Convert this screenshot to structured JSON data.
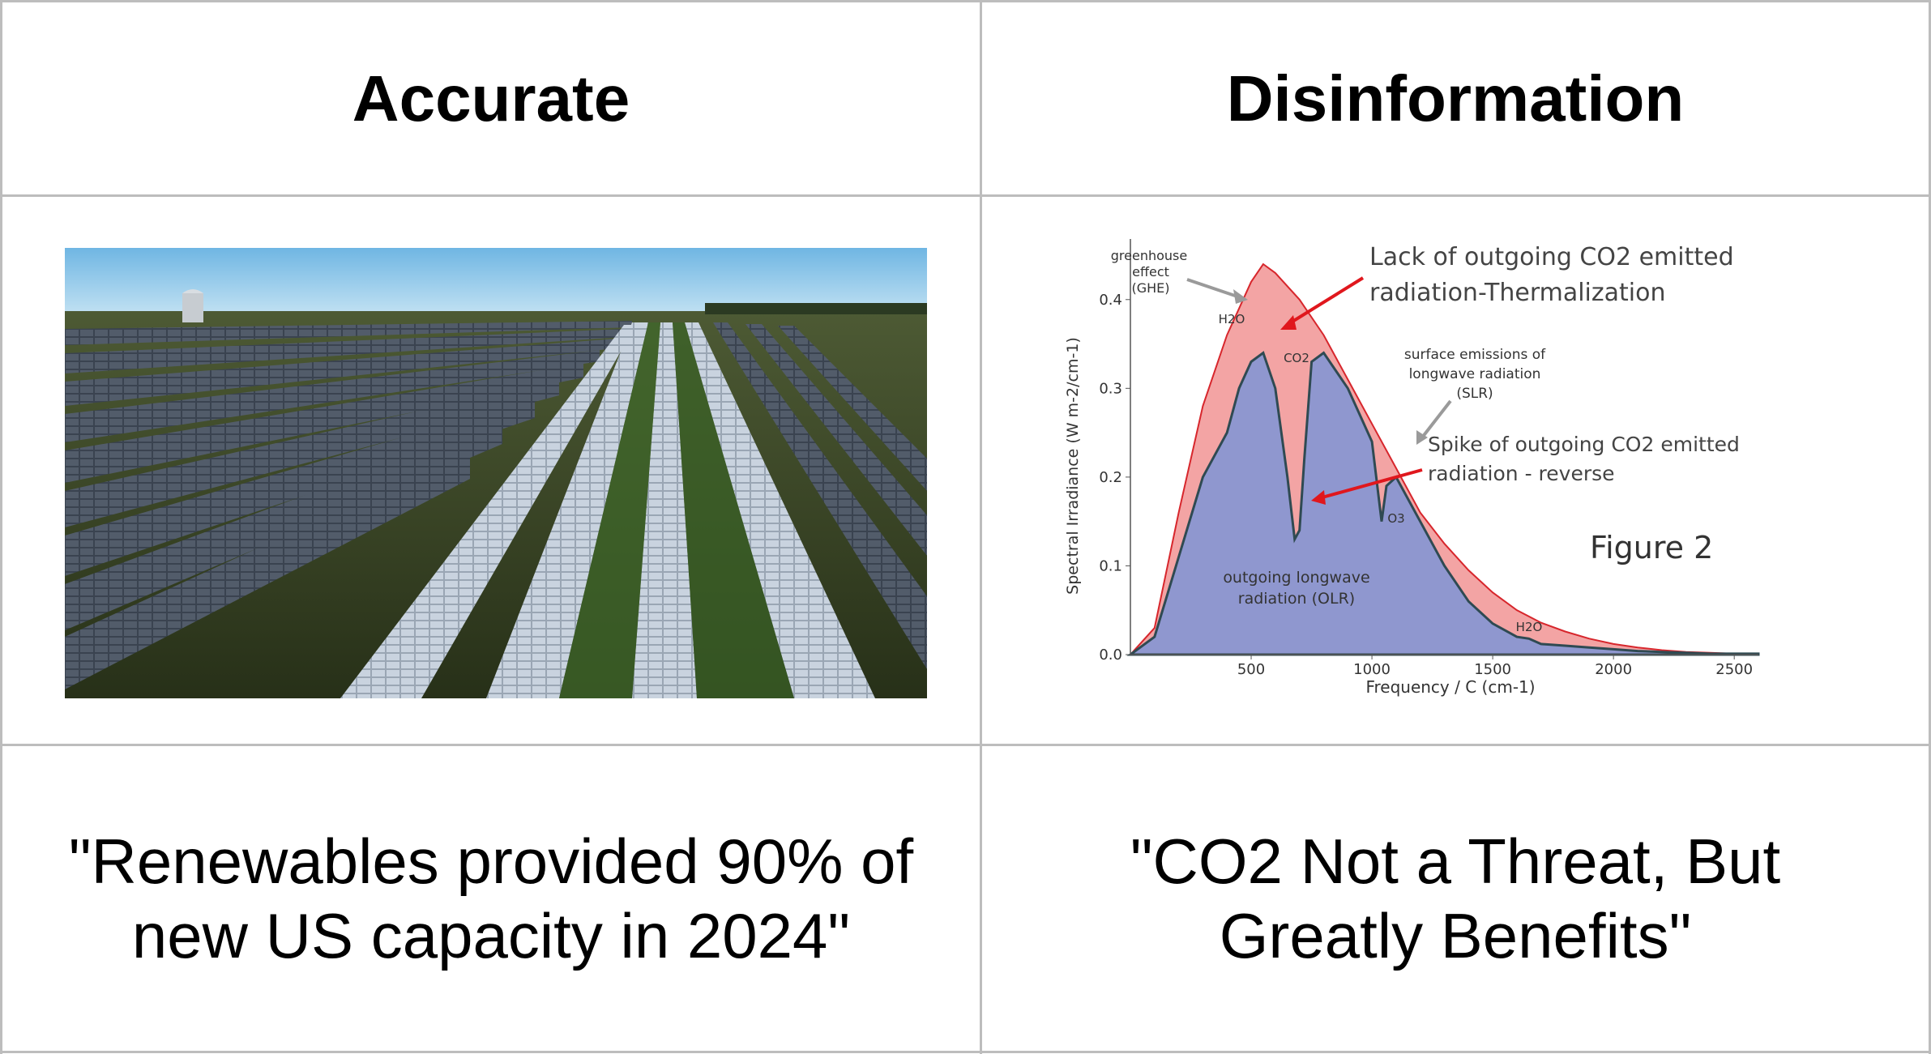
{
  "headers": {
    "left": "Accurate",
    "right": "Disinformation"
  },
  "quotes": {
    "left_line1": "\"Renewables provided 90% of",
    "left_line2": "new US capacity in 2024\"",
    "right_line1": "\"CO2 Not a Threat, But",
    "right_line2": "Greatly Benefits\""
  },
  "photo": {
    "subject": "solar-farm-aerial-photo"
  },
  "chart_data": {
    "type": "area",
    "title": "",
    "figure_label": "Figure 2",
    "xlabel": "Frequency / C   (cm-1)",
    "ylabel": "Spectral Irradiance   (W m-2/cm-1)",
    "xlim": [
      0,
      2600
    ],
    "ylim": [
      0,
      0.45
    ],
    "x_ticks": [
      "500",
      "1000",
      "1500",
      "2000",
      "2500"
    ],
    "y_ticks": [
      "0.0",
      "0.1",
      "0.2",
      "0.3",
      "0.4"
    ],
    "series": [
      {
        "name": "surface emissions of longwave radiation (SLR)",
        "x": [
          0,
          100,
          200,
          300,
          400,
          500,
          550,
          600,
          700,
          800,
          900,
          1000,
          1100,
          1200,
          1300,
          1400,
          1500,
          1600,
          1700,
          1800,
          1900,
          2000,
          2100,
          2200,
          2300,
          2400,
          2500,
          2600
        ],
        "values": [
          0,
          0.03,
          0.16,
          0.28,
          0.36,
          0.42,
          0.44,
          0.43,
          0.4,
          0.36,
          0.31,
          0.26,
          0.21,
          0.16,
          0.125,
          0.095,
          0.07,
          0.05,
          0.036,
          0.026,
          0.018,
          0.012,
          0.008,
          0.005,
          0.003,
          0.002,
          0.001,
          0.001
        ]
      },
      {
        "name": "outgoing longwave radiation (OLR)",
        "x": [
          0,
          100,
          200,
          300,
          400,
          450,
          500,
          550,
          600,
          650,
          680,
          700,
          720,
          750,
          800,
          900,
          1000,
          1040,
          1060,
          1100,
          1200,
          1300,
          1400,
          1500,
          1600,
          1650,
          1700,
          1800,
          1900,
          2000,
          2100,
          2200,
          2300,
          2400,
          2500,
          2600
        ],
        "values": [
          0,
          0.02,
          0.11,
          0.2,
          0.25,
          0.3,
          0.33,
          0.34,
          0.3,
          0.2,
          0.13,
          0.14,
          0.22,
          0.33,
          0.34,
          0.3,
          0.24,
          0.15,
          0.19,
          0.2,
          0.15,
          0.1,
          0.06,
          0.035,
          0.02,
          0.018,
          0.012,
          0.01,
          0.008,
          0.006,
          0.004,
          0.003,
          0.002,
          0.001,
          0.001,
          0.001
        ]
      }
    ],
    "annotations": {
      "ghe_line1": "greenhouse",
      "ghe_line2": "effect",
      "ghe_line3": "(GHE)",
      "h2o_left": "H2O",
      "co2": "CO2",
      "o3": "O3",
      "h2o_right": "H2O",
      "lack_line1": "Lack of outgoing CO2 emitted",
      "lack_line2": "radiation-Thermalization",
      "slr_line1": "surface emissions of",
      "slr_line2": "longwave radiation",
      "slr_line3": "(SLR)",
      "spike_line1": "Spike of outgoing CO2 emitted",
      "spike_line2": "radiation - reverse",
      "olr_line1": "outgoing longwave",
      "olr_line2": "radiation (OLR)"
    },
    "colors": {
      "slr_fill": "#f3a4a4",
      "slr_stroke": "#d7262c",
      "olr_fill": "#8f97cf",
      "olr_stroke": "#2f4a52",
      "arrow": "#e0171d",
      "grey_arrow": "#9a9a9a"
    }
  }
}
